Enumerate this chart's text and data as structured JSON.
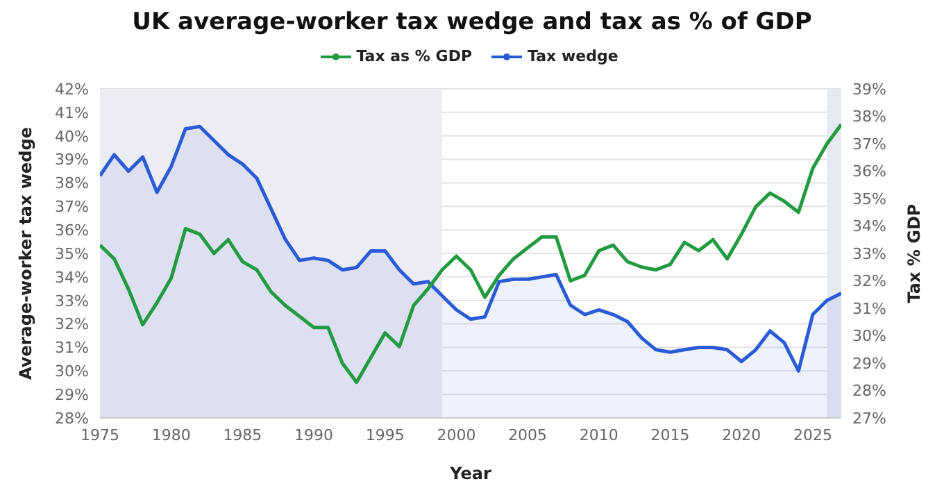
{
  "chart_data": {
    "type": "line",
    "title": "UK average-worker tax wedge and tax as % of GDP",
    "xlabel": "Year",
    "ylabel": "Average-worker tax wedge",
    "y2label": "Tax % GDP",
    "x": [
      1975,
      1976,
      1977,
      1978,
      1979,
      1980,
      1981,
      1982,
      1983,
      1984,
      1985,
      1986,
      1987,
      1988,
      1989,
      1990,
      1991,
      1992,
      1993,
      1994,
      1995,
      1996,
      1997,
      1998,
      1999,
      2000,
      2001,
      2002,
      2003,
      2004,
      2005,
      2006,
      2007,
      2008,
      2009,
      2010,
      2011,
      2012,
      2013,
      2014,
      2015,
      2016,
      2017,
      2018,
      2019,
      2020,
      2021,
      2022,
      2023,
      2024,
      2025,
      2026,
      2027
    ],
    "series": [
      {
        "name": "Tax as % GDP",
        "type": "line",
        "axis": "y2",
        "color": "#229a40",
        "values": [
          33.3,
          32.8,
          31.7,
          30.4,
          31.2,
          32.1,
          33.9,
          33.7,
          33.0,
          33.5,
          32.7,
          32.4,
          31.6,
          31.1,
          30.7,
          30.3,
          30.3,
          29.0,
          28.3,
          29.2,
          30.1,
          29.6,
          31.1,
          31.7,
          32.4,
          32.9,
          32.4,
          31.4,
          32.2,
          32.8,
          33.2,
          33.6,
          33.6,
          32.0,
          32.2,
          33.1,
          33.3,
          32.7,
          32.5,
          32.4,
          32.6,
          33.4,
          33.1,
          33.5,
          32.8,
          33.7,
          34.7,
          35.2,
          34.9,
          34.5,
          36.1,
          37.0,
          37.7
        ]
      },
      {
        "name": "Tax wedge",
        "type": "area",
        "color": "#2a5bd7",
        "values": [
          38.3,
          39.2,
          38.5,
          39.1,
          37.6,
          38.7,
          40.3,
          40.4,
          39.8,
          39.2,
          38.8,
          38.2,
          36.9,
          35.6,
          34.7,
          34.8,
          34.7,
          34.3,
          34.4,
          35.1,
          35.1,
          34.3,
          33.7,
          33.8,
          33.2,
          32.6,
          32.2,
          32.3,
          33.8,
          33.9,
          33.9,
          34.0,
          34.1,
          32.8,
          32.4,
          32.6,
          32.4,
          32.1,
          31.4,
          30.9,
          30.8,
          30.9,
          31.0,
          31.0,
          30.9,
          30.4,
          30.9,
          31.7,
          31.2,
          30.0,
          32.4,
          33.0,
          33.3
        ]
      }
    ],
    "xlim": [
      1975,
      2027
    ],
    "xticks": [
      1975,
      1980,
      1985,
      1990,
      1995,
      2000,
      2005,
      2010,
      2015,
      2020,
      2025
    ],
    "ylim": [
      28,
      42
    ],
    "yticks": [
      {
        "value": 28,
        "label": "28%"
      },
      {
        "value": 29,
        "label": "29%"
      },
      {
        "value": 30,
        "label": "30%"
      },
      {
        "value": 31,
        "label": "31%"
      },
      {
        "value": 32,
        "label": "32%"
      },
      {
        "value": 33,
        "label": "33%"
      },
      {
        "value": 34,
        "label": "34%"
      },
      {
        "value": 35,
        "label": "35%"
      },
      {
        "value": 36,
        "label": "36%"
      },
      {
        "value": 37,
        "label": "37%"
      },
      {
        "value": 38,
        "label": "38%"
      },
      {
        "value": 39,
        "label": "39%"
      },
      {
        "value": 40,
        "label": "40%"
      },
      {
        "value": 41,
        "label": "41%"
      },
      {
        "value": 42,
        "label": "42%"
      }
    ],
    "y2lim": [
      27,
      39
    ],
    "y2ticks": [
      {
        "value": 27,
        "label": "27%"
      },
      {
        "value": 28,
        "label": "28%"
      },
      {
        "value": 29,
        "label": "29%"
      },
      {
        "value": 30,
        "label": "30%"
      },
      {
        "value": 31,
        "label": "31%"
      },
      {
        "value": 32,
        "label": "32%"
      },
      {
        "value": 33,
        "label": "33%"
      },
      {
        "value": 34,
        "label": "34%"
      },
      {
        "value": 35,
        "label": "35%"
      },
      {
        "value": 36,
        "label": "36%"
      },
      {
        "value": 37,
        "label": "37%"
      },
      {
        "value": 38,
        "label": "38%"
      },
      {
        "value": 39,
        "label": "39%"
      }
    ],
    "bands": [
      {
        "axis": "x",
        "from": 1975,
        "to": 1999,
        "color": "#ececf4"
      },
      {
        "axis": "x",
        "from": 2026,
        "to": 2027,
        "color": "#e6e8f2"
      }
    ],
    "grid": "y",
    "legend": "top",
    "marker": "none",
    "line_style": "solid"
  }
}
